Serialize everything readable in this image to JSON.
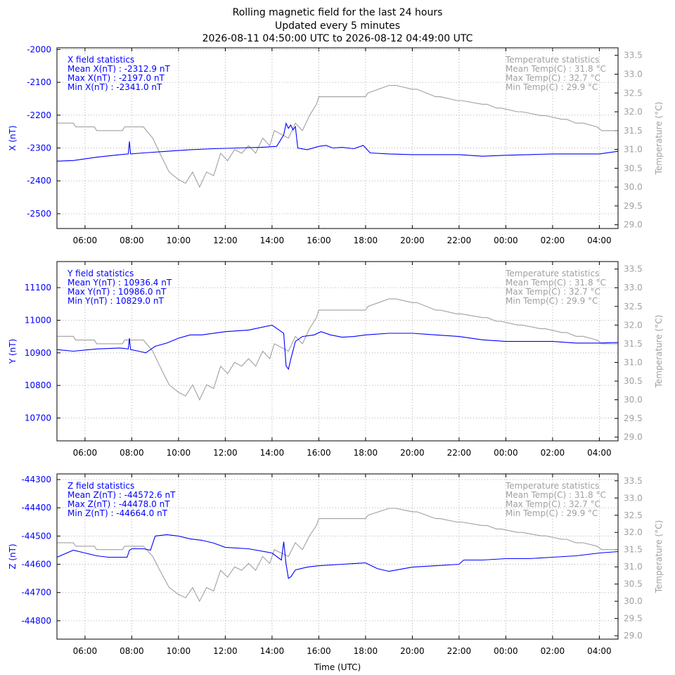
{
  "title": {
    "line1": "Rolling magnetic field for the last 24 hours",
    "line2": "Updated every 5 minutes",
    "line3": "2026-08-11 04:50:00 UTC to 2026-08-12 04:49:00 UTC"
  },
  "colors": {
    "field": "#0000ff",
    "temperature": "#a0a0a0",
    "grid": "#b0b0b0"
  },
  "xlabel": "Time (UTC)",
  "x_ticks": [
    "06:00",
    "08:00",
    "10:00",
    "12:00",
    "14:00",
    "16:00",
    "18:00",
    "20:00",
    "22:00",
    "00:00",
    "02:00",
    "04:00"
  ],
  "chart_data": [
    {
      "type": "line",
      "panel": "X",
      "ylabel": "X (nT)",
      "y2label": "Temperature (°C)",
      "ylim": [
        -2545,
        -1995
      ],
      "y2lim": [
        28.9,
        33.7
      ],
      "xlim": [
        4.8,
        28.8
      ],
      "y_ticks": [
        -2000,
        -2100,
        -2200,
        -2300,
        -2400,
        -2500
      ],
      "y2_ticks": [
        "33.5",
        "33.0",
        "32.5",
        "32.0",
        "31.5",
        "31.0",
        "30.5",
        "30.0",
        "29.5",
        "29.0"
      ],
      "stats": {
        "header": "X field statistics",
        "mean": "Mean X(nT) : -2312.9 nT",
        "max": "Max X(nT) : -2197.0 nT",
        "min": "Min X(nT) : -2341.0 nT"
      },
      "temp_stats": {
        "header": "Temperature statistics",
        "mean": "Mean Temp(C) : 31.8 °C",
        "max": "Max Temp(C) : 32.7 °C",
        "min": "Min Temp(C) : 29.9 °C"
      },
      "series": [
        {
          "name": "X (nT)",
          "axis": "left",
          "x": [
            4.8,
            5.5,
            6.5,
            7.5,
            7.85,
            7.9,
            7.95,
            8.5,
            9.5,
            10.5,
            11.5,
            12.5,
            13.5,
            14.2,
            14.5,
            14.6,
            14.7,
            14.8,
            14.9,
            15.0,
            15.1,
            15.5,
            16.0,
            16.3,
            16.6,
            17.0,
            17.5,
            17.9,
            18.2,
            19,
            20,
            21,
            22,
            23,
            24,
            25,
            26,
            27,
            28,
            28.8
          ],
          "y": [
            -2340,
            -2338,
            -2328,
            -2320,
            -2318,
            -2280,
            -2318,
            -2315,
            -2310,
            -2305,
            -2302,
            -2300,
            -2298,
            -2295,
            -2260,
            -2225,
            -2240,
            -2230,
            -2245,
            -2235,
            -2300,
            -2305,
            -2295,
            -2292,
            -2300,
            -2298,
            -2302,
            -2292,
            -2315,
            -2318,
            -2320,
            -2320,
            -2320,
            -2325,
            -2322,
            -2320,
            -2318,
            -2318,
            -2318,
            -2310
          ]
        },
        {
          "name": "Temperature (°C)",
          "axis": "right",
          "x": [
            4.8,
            5.5,
            5.6,
            6.4,
            6.5,
            7.6,
            7.7,
            8.5,
            8.9,
            9.2,
            9.6,
            10.0,
            10.3,
            10.6,
            10.9,
            11.2,
            11.5,
            11.8,
            12.1,
            12.4,
            12.7,
            13.0,
            13.3,
            13.6,
            13.9,
            14.1,
            14.4,
            14.7,
            15.0,
            15.3,
            15.6,
            15.9,
            16.0,
            16.2,
            17.0,
            18.0,
            18.1,
            19.0,
            19.3,
            20.0,
            20.2,
            21.0,
            21.2,
            21.9,
            22.1,
            23.0,
            23.2,
            23.6,
            23.8,
            24.5,
            24.7,
            25.5,
            25.7,
            26.4,
            26.6,
            27.0,
            27.3,
            27.9,
            28.1,
            28.8
          ],
          "y": [
            31.7,
            31.7,
            31.6,
            31.6,
            31.5,
            31.5,
            31.6,
            31.6,
            31.3,
            30.9,
            30.4,
            30.2,
            30.1,
            30.4,
            30.0,
            30.4,
            30.3,
            30.9,
            30.7,
            31.0,
            30.9,
            31.1,
            30.9,
            31.3,
            31.1,
            31.5,
            31.4,
            31.3,
            31.7,
            31.5,
            31.9,
            32.2,
            32.4,
            32.4,
            32.4,
            32.4,
            32.5,
            32.7,
            32.7,
            32.6,
            32.6,
            32.4,
            32.4,
            32.3,
            32.3,
            32.2,
            32.2,
            32.1,
            32.1,
            32.0,
            32.0,
            31.9,
            31.9,
            31.8,
            31.8,
            31.7,
            31.7,
            31.6,
            31.5,
            31.5
          ]
        }
      ]
    },
    {
      "type": "line",
      "panel": "Y",
      "ylabel": "Y (nT)",
      "y2label": "Temperature (°C)",
      "ylim": [
        10630,
        11180
      ],
      "y2lim": [
        28.9,
        33.7
      ],
      "xlim": [
        4.8,
        28.8
      ],
      "y_ticks": [
        11100,
        11000,
        10900,
        10800,
        10700
      ],
      "y2_ticks": [
        "33.5",
        "33.0",
        "32.5",
        "32.0",
        "31.5",
        "31.0",
        "30.5",
        "30.0",
        "29.5",
        "29.0"
      ],
      "stats": {
        "header": "Y field statistics",
        "mean": "Mean Y(nT) : 10936.4 nT",
        "max": "Max Y(nT) : 10986.0 nT",
        "min": "Min Y(nT) : 10829.0 nT"
      },
      "temp_stats": {
        "header": "Temperature statistics",
        "mean": "Mean Temp(C) : 31.8 °C",
        "max": "Max Temp(C) : 32.7 °C",
        "min": "Min Temp(C) : 29.9 °C"
      },
      "series": [
        {
          "name": "Y (nT)",
          "axis": "left",
          "x": [
            4.8,
            5.5,
            6.5,
            7.5,
            7.85,
            7.9,
            7.95,
            8.3,
            8.6,
            9.0,
            9.5,
            10.0,
            10.5,
            11.0,
            12.0,
            13.0,
            14.0,
            14.3,
            14.5,
            14.6,
            14.7,
            14.8,
            15.0,
            15.3,
            15.8,
            16.1,
            16.5,
            17.0,
            17.5,
            18.0,
            19.0,
            20.0,
            21.0,
            22.0,
            23.0,
            24.0,
            25.0,
            26.0,
            27.0,
            28.0,
            28.8
          ],
          "y": [
            10910,
            10905,
            10912,
            10915,
            10912,
            10945,
            10910,
            10905,
            10900,
            10920,
            10930,
            10945,
            10955,
            10955,
            10965,
            10970,
            10985,
            10970,
            10960,
            10860,
            10850,
            10880,
            10935,
            10950,
            10955,
            10965,
            10955,
            10948,
            10950,
            10955,
            10960,
            10960,
            10955,
            10950,
            10940,
            10935,
            10935,
            10935,
            10930,
            10930,
            10932
          ]
        },
        {
          "name": "Temperature (°C)",
          "axis": "right",
          "x": [
            4.8,
            5.5,
            5.6,
            6.4,
            6.5,
            7.6,
            7.7,
            8.5,
            8.9,
            9.2,
            9.6,
            10.0,
            10.3,
            10.6,
            10.9,
            11.2,
            11.5,
            11.8,
            12.1,
            12.4,
            12.7,
            13.0,
            13.3,
            13.6,
            13.9,
            14.1,
            14.4,
            14.7,
            15.0,
            15.3,
            15.6,
            15.9,
            16.0,
            16.2,
            17.0,
            18.0,
            18.1,
            19.0,
            19.3,
            20.0,
            20.2,
            21.0,
            21.2,
            21.9,
            22.1,
            23.0,
            23.2,
            23.6,
            23.8,
            24.5,
            24.7,
            25.5,
            25.7,
            26.4,
            26.6,
            27.0,
            27.3,
            27.9,
            28.1,
            28.8
          ],
          "y": [
            31.7,
            31.7,
            31.6,
            31.6,
            31.5,
            31.5,
            31.6,
            31.6,
            31.3,
            30.9,
            30.4,
            30.2,
            30.1,
            30.4,
            30.0,
            30.4,
            30.3,
            30.9,
            30.7,
            31.0,
            30.9,
            31.1,
            30.9,
            31.3,
            31.1,
            31.5,
            31.4,
            31.3,
            31.7,
            31.5,
            31.9,
            32.2,
            32.4,
            32.4,
            32.4,
            32.4,
            32.5,
            32.7,
            32.7,
            32.6,
            32.6,
            32.4,
            32.4,
            32.3,
            32.3,
            32.2,
            32.2,
            32.1,
            32.1,
            32.0,
            32.0,
            31.9,
            31.9,
            31.8,
            31.8,
            31.7,
            31.7,
            31.6,
            31.5,
            31.5
          ]
        }
      ]
    },
    {
      "type": "line",
      "panel": "Z",
      "ylabel": "Z (nT)",
      "y2label": "Temperature (°C)",
      "ylim": [
        -44865,
        -44280
      ],
      "y2lim": [
        28.9,
        33.7
      ],
      "xlim": [
        4.8,
        28.8
      ],
      "y_ticks": [
        -44300,
        -44400,
        -44500,
        -44600,
        -44700,
        -44800
      ],
      "y2_ticks": [
        "33.5",
        "33.0",
        "32.5",
        "32.0",
        "31.5",
        "31.0",
        "30.5",
        "30.0",
        "29.5",
        "29.0"
      ],
      "stats": {
        "header": "Z field statistics",
        "mean": "Mean Z(nT) : -44572.6 nT",
        "max": "Max Z(nT) : -44478.0 nT",
        "min": "Min Z(nT) : -44664.0 nT"
      },
      "temp_stats": {
        "header": "Temperature statistics",
        "mean": "Mean Temp(C) : 31.8 °C",
        "max": "Max Temp(C) : 32.7 °C",
        "min": "Min Temp(C) : 29.9 °C"
      },
      "series": [
        {
          "name": "Z (nT)",
          "axis": "left",
          "x": [
            4.8,
            5.5,
            6.0,
            6.5,
            7.0,
            7.8,
            7.9,
            8.0,
            8.5,
            8.8,
            9.0,
            9.5,
            10.0,
            10.5,
            11.0,
            11.5,
            12.0,
            13.0,
            14.0,
            14.4,
            14.5,
            14.6,
            14.7,
            14.8,
            15.0,
            15.5,
            16.0,
            17.0,
            18.0,
            18.5,
            19.0,
            20.0,
            21.0,
            22.0,
            22.2,
            23.0,
            24.0,
            25.0,
            26.0,
            27.0,
            28.0,
            28.8
          ],
          "y": [
            -44575,
            -44550,
            -44560,
            -44570,
            -44575,
            -44575,
            -44550,
            -44545,
            -44545,
            -44550,
            -44500,
            -44495,
            -44500,
            -44510,
            -44515,
            -44525,
            -44540,
            -44545,
            -44560,
            -44585,
            -44520,
            -44600,
            -44650,
            -44645,
            -44620,
            -44610,
            -44605,
            -44600,
            -44595,
            -44615,
            -44625,
            -44610,
            -44605,
            -44600,
            -44585,
            -44585,
            -44580,
            -44580,
            -44575,
            -44570,
            -44560,
            -44555
          ]
        },
        {
          "name": "Temperature (°C)",
          "axis": "right",
          "x": [
            4.8,
            5.5,
            5.6,
            6.4,
            6.5,
            7.6,
            7.7,
            8.5,
            8.9,
            9.2,
            9.6,
            10.0,
            10.3,
            10.6,
            10.9,
            11.2,
            11.5,
            11.8,
            12.1,
            12.4,
            12.7,
            13.0,
            13.3,
            13.6,
            13.9,
            14.1,
            14.4,
            14.7,
            15.0,
            15.3,
            15.6,
            15.9,
            16.0,
            16.2,
            17.0,
            18.0,
            18.1,
            19.0,
            19.3,
            20.0,
            20.2,
            21.0,
            21.2,
            21.9,
            22.1,
            23.0,
            23.2,
            23.6,
            23.8,
            24.5,
            24.7,
            25.5,
            25.7,
            26.4,
            26.6,
            27.0,
            27.3,
            27.9,
            28.1,
            28.8
          ],
          "y": [
            31.7,
            31.7,
            31.6,
            31.6,
            31.5,
            31.5,
            31.6,
            31.6,
            31.3,
            30.9,
            30.4,
            30.2,
            30.1,
            30.4,
            30.0,
            30.4,
            30.3,
            30.9,
            30.7,
            31.0,
            30.9,
            31.1,
            30.9,
            31.3,
            31.1,
            31.5,
            31.4,
            31.3,
            31.7,
            31.5,
            31.9,
            32.2,
            32.4,
            32.4,
            32.4,
            32.4,
            32.5,
            32.7,
            32.7,
            32.6,
            32.6,
            32.4,
            32.4,
            32.3,
            32.3,
            32.2,
            32.2,
            32.1,
            32.1,
            32.0,
            32.0,
            31.9,
            31.9,
            31.8,
            31.8,
            31.7,
            31.7,
            31.6,
            31.5,
            31.5
          ]
        }
      ]
    }
  ]
}
